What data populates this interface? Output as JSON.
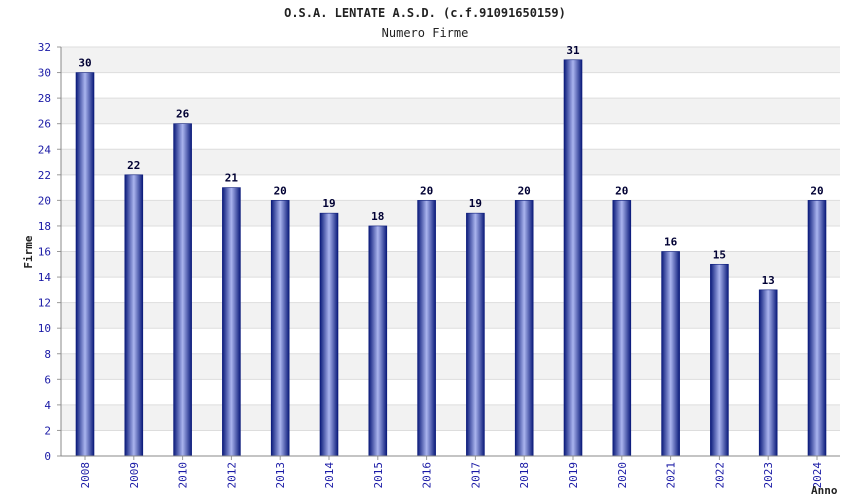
{
  "chart_data": {
    "type": "bar",
    "title": "O.S.A. LENTATE A.S.D. (c.f.91091650159)",
    "subtitle": "Numero Firme",
    "xlabel": "Anno",
    "ylabel": "Firme",
    "categories": [
      "2008",
      "2009",
      "2010",
      "2012",
      "2013",
      "2014",
      "2015",
      "2016",
      "2017",
      "2018",
      "2019",
      "2020",
      "2021",
      "2022",
      "2023",
      "2024"
    ],
    "values": [
      30,
      22,
      26,
      21,
      20,
      19,
      18,
      20,
      19,
      20,
      31,
      20,
      16,
      15,
      13,
      20
    ],
    "ylim": [
      0,
      32
    ],
    "yticks": [
      0,
      2,
      4,
      6,
      8,
      10,
      12,
      14,
      16,
      18,
      20,
      22,
      24,
      26,
      28,
      30,
      32
    ],
    "grid": true,
    "colors": {
      "bar_dark": "#0a1a7a",
      "bar_light": "#aab4ee",
      "band": "#f2f2f2",
      "tick": "#1a1aa6"
    }
  }
}
